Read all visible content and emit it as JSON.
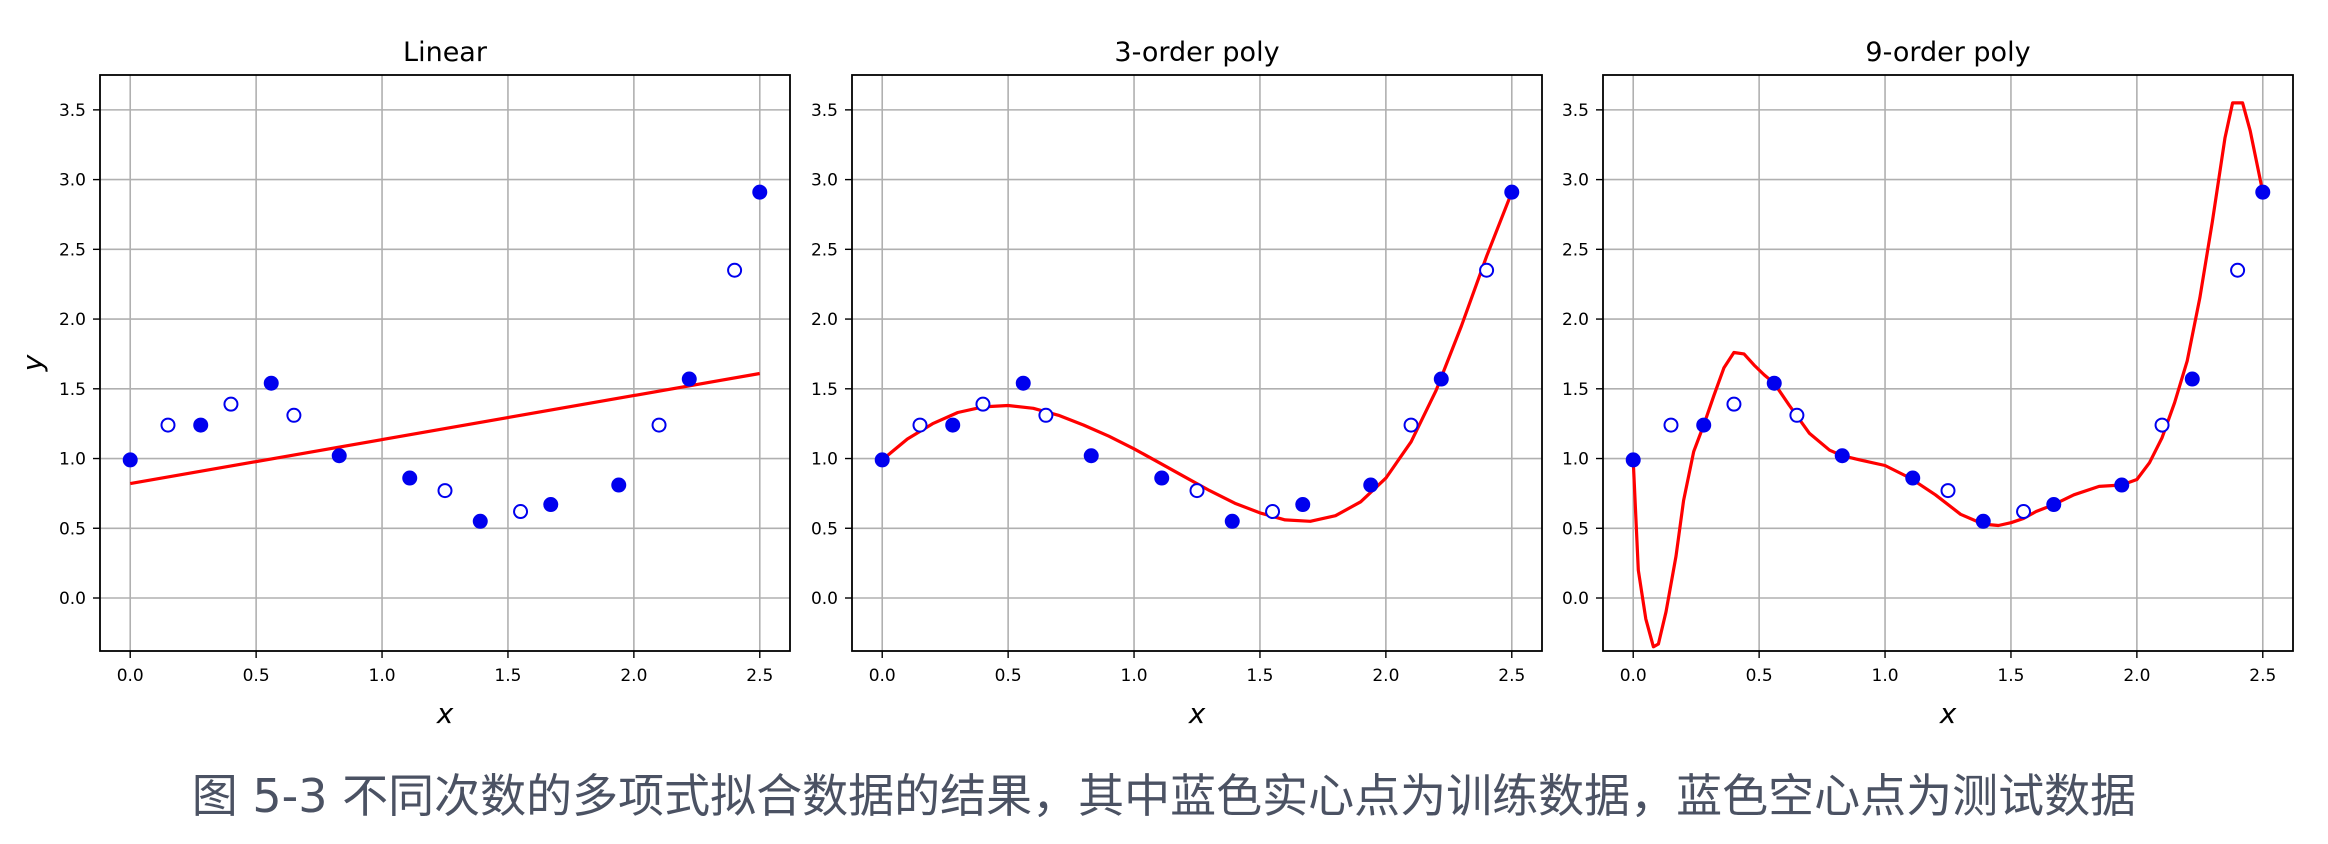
{
  "figure": {
    "caption": "图 5-3 不同次数的多项式拟合数据的结果，其中蓝色实心点为训练数据，蓝色空心点为测试数据"
  },
  "chart_data": [
    {
      "type": "scatter",
      "title": "Linear",
      "xlabel": "x",
      "ylabel": "y",
      "xlim": [
        -0.12,
        2.62
      ],
      "ylim": [
        -0.38,
        3.75
      ],
      "xticks": [
        "0.0",
        "0.5",
        "1.0",
        "1.5",
        "2.0",
        "2.5"
      ],
      "yticks": [
        "0.0",
        "0.5",
        "1.0",
        "1.5",
        "2.0",
        "2.5",
        "3.0",
        "3.5"
      ],
      "grid": true,
      "colors": {
        "points": "#0000ee",
        "fit": "#ff0000"
      },
      "train": {
        "x": [
          0.0,
          0.28,
          0.56,
          0.83,
          1.11,
          1.39,
          1.67,
          1.94,
          2.22,
          2.5
        ],
        "y": [
          0.99,
          1.24,
          1.54,
          1.02,
          0.86,
          0.55,
          0.67,
          0.81,
          1.57,
          2.91
        ]
      },
      "test": {
        "x": [
          0.15,
          0.4,
          0.65,
          1.25,
          1.55,
          2.1,
          2.4
        ],
        "y": [
          1.24,
          1.39,
          1.31,
          0.77,
          0.62,
          1.24,
          2.35
        ]
      },
      "fit": {
        "x": [
          0.0,
          2.5
        ],
        "y": [
          0.82,
          1.61
        ]
      }
    },
    {
      "type": "scatter",
      "title": "3-order poly",
      "xlabel": "x",
      "ylabel": "",
      "xlim": [
        -0.12,
        2.62
      ],
      "ylim": [
        -0.38,
        3.75
      ],
      "xticks": [
        "0.0",
        "0.5",
        "1.0",
        "1.5",
        "2.0",
        "2.5"
      ],
      "yticks": [
        "0.0",
        "0.5",
        "1.0",
        "1.5",
        "2.0",
        "2.5",
        "3.0",
        "3.5"
      ],
      "grid": true,
      "colors": {
        "points": "#0000ee",
        "fit": "#ff0000"
      },
      "train": {
        "x": [
          0.0,
          0.28,
          0.56,
          0.83,
          1.11,
          1.39,
          1.67,
          1.94,
          2.22,
          2.5
        ],
        "y": [
          0.99,
          1.24,
          1.54,
          1.02,
          0.86,
          0.55,
          0.67,
          0.81,
          1.57,
          2.91
        ]
      },
      "test": {
        "x": [
          0.15,
          0.4,
          0.65,
          1.25,
          1.55,
          2.1,
          2.4
        ],
        "y": [
          1.24,
          1.39,
          1.31,
          0.77,
          0.62,
          1.24,
          2.35
        ]
      },
      "fit": {
        "x": [
          0.0,
          0.1,
          0.2,
          0.3,
          0.4,
          0.5,
          0.6,
          0.7,
          0.8,
          0.9,
          1.0,
          1.1,
          1.2,
          1.3,
          1.4,
          1.5,
          1.6,
          1.7,
          1.8,
          1.9,
          2.0,
          2.1,
          2.2,
          2.3,
          2.4,
          2.5
        ],
        "y": [
          0.99,
          1.14,
          1.25,
          1.33,
          1.37,
          1.38,
          1.36,
          1.31,
          1.24,
          1.16,
          1.07,
          0.97,
          0.87,
          0.77,
          0.68,
          0.61,
          0.56,
          0.55,
          0.59,
          0.69,
          0.86,
          1.12,
          1.49,
          1.95,
          2.45,
          2.91
        ]
      }
    },
    {
      "type": "scatter",
      "title": "9-order poly",
      "xlabel": "x",
      "ylabel": "",
      "xlim": [
        -0.12,
        2.62
      ],
      "ylim": [
        -0.38,
        3.75
      ],
      "xticks": [
        "0.0",
        "0.5",
        "1.0",
        "1.5",
        "2.0",
        "2.5"
      ],
      "yticks": [
        "0.0",
        "0.5",
        "1.0",
        "1.5",
        "2.0",
        "2.5",
        "3.0",
        "3.5"
      ],
      "grid": true,
      "colors": {
        "points": "#0000ee",
        "fit": "#ff0000"
      },
      "train": {
        "x": [
          0.0,
          0.28,
          0.56,
          0.83,
          1.11,
          1.39,
          1.67,
          1.94,
          2.22,
          2.5
        ],
        "y": [
          0.99,
          1.24,
          1.54,
          1.02,
          0.86,
          0.55,
          0.67,
          0.81,
          1.57,
          2.91
        ]
      },
      "test": {
        "x": [
          0.15,
          0.4,
          0.65,
          1.25,
          1.55,
          2.1,
          2.4
        ],
        "y": [
          1.24,
          1.39,
          1.31,
          0.77,
          0.62,
          1.24,
          2.35
        ]
      },
      "fit": {
        "x": [
          0.0,
          0.02,
          0.05,
          0.08,
          0.1,
          0.13,
          0.17,
          0.2,
          0.24,
          0.28,
          0.32,
          0.36,
          0.4,
          0.44,
          0.48,
          0.52,
          0.56,
          0.62,
          0.7,
          0.78,
          0.83,
          0.9,
          1.0,
          1.1,
          1.2,
          1.3,
          1.39,
          1.45,
          1.5,
          1.55,
          1.6,
          1.67,
          1.75,
          1.85,
          1.94,
          2.0,
          2.05,
          2.1,
          2.15,
          2.2,
          2.25,
          2.3,
          2.35,
          2.38,
          2.42,
          2.45,
          2.5
        ],
        "y": [
          0.99,
          0.2,
          -0.15,
          -0.35,
          -0.33,
          -0.1,
          0.3,
          0.7,
          1.05,
          1.24,
          1.45,
          1.65,
          1.76,
          1.75,
          1.67,
          1.6,
          1.54,
          1.38,
          1.18,
          1.06,
          1.02,
          0.99,
          0.95,
          0.86,
          0.74,
          0.6,
          0.53,
          0.52,
          0.54,
          0.57,
          0.62,
          0.67,
          0.74,
          0.8,
          0.81,
          0.85,
          0.97,
          1.15,
          1.4,
          1.7,
          2.15,
          2.7,
          3.3,
          3.55,
          3.55,
          3.35,
          2.91
        ]
      }
    }
  ]
}
